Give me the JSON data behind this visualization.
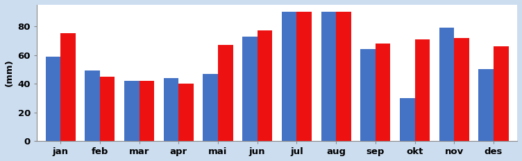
{
  "months": [
    "jan",
    "feb",
    "mar",
    "apr",
    "mai",
    "jun",
    "jul",
    "aug",
    "sep",
    "okt",
    "nov",
    "des"
  ],
  "blue_values": [
    59,
    49,
    42,
    44,
    47,
    73,
    90,
    90,
    64,
    30,
    79,
    50
  ],
  "red_values": [
    75,
    45,
    42,
    40,
    67,
    77,
    90,
    90,
    68,
    71,
    72,
    66
  ],
  "blue_color": "#4472C4",
  "red_color": "#EE1111",
  "ylabel": "(mm)",
  "ylim": [
    0,
    95
  ],
  "yticks": [
    0,
    20,
    40,
    60,
    80
  ],
  "bg_color": "#CCDDF0",
  "plot_bg_color": "#FFFFFF",
  "bar_width": 0.38,
  "tick_fontsize": 9.5,
  "ylabel_fontsize": 9.5,
  "label_color": "#000000"
}
